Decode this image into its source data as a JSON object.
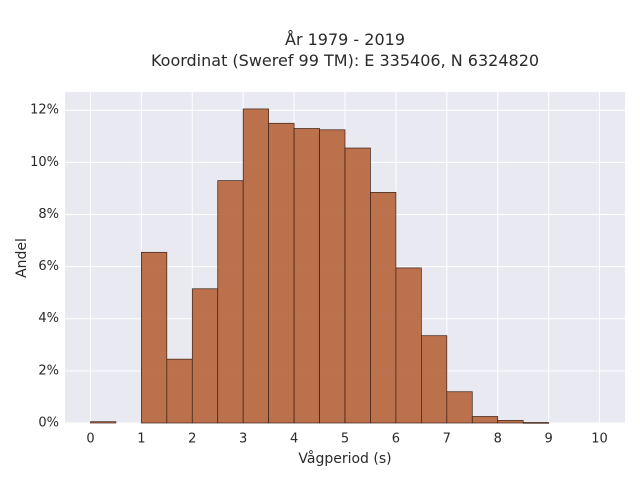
{
  "chart_data": {
    "type": "bar",
    "title_lines": [
      "År 1979 - 2019",
      "Koordinat (Sweref 99 TM): E 335406, N 6324820"
    ],
    "xlabel": "Vågperiod (s)",
    "ylabel": "Andel",
    "xlim": [
      -0.5,
      10.5
    ],
    "ylim": [
      0,
      12.7
    ],
    "bin_width": 0.5,
    "bins": [
      {
        "x": 0.0,
        "value": 0.05
      },
      {
        "x": 0.5,
        "value": 0
      },
      {
        "x": 1.0,
        "value": 6.55
      },
      {
        "x": 1.5,
        "value": 2.45
      },
      {
        "x": 2.0,
        "value": 5.15
      },
      {
        "x": 2.5,
        "value": 9.3
      },
      {
        "x": 3.0,
        "value": 12.05
      },
      {
        "x": 3.5,
        "value": 11.5
      },
      {
        "x": 4.0,
        "value": 11.3
      },
      {
        "x": 4.5,
        "value": 11.25
      },
      {
        "x": 5.0,
        "value": 10.55
      },
      {
        "x": 5.5,
        "value": 8.85
      },
      {
        "x": 6.0,
        "value": 5.95
      },
      {
        "x": 6.5,
        "value": 3.35
      },
      {
        "x": 7.0,
        "value": 1.2
      },
      {
        "x": 7.5,
        "value": 0.25
      },
      {
        "x": 8.0,
        "value": 0.1
      },
      {
        "x": 8.5,
        "value": 0.02
      },
      {
        "x": 9.0,
        "value": 0
      },
      {
        "x": 9.5,
        "value": 0
      }
    ],
    "x_ticks": [
      0,
      1,
      2,
      3,
      4,
      5,
      6,
      7,
      8,
      9,
      10
    ],
    "x_tick_labels": [
      "0",
      "1",
      "2",
      "3",
      "4",
      "5",
      "6",
      "7",
      "8",
      "9",
      "10"
    ],
    "y_ticks": [
      0,
      2,
      4,
      6,
      8,
      10,
      12
    ],
    "y_tick_labels": [
      "0%",
      "2%",
      "4%",
      "6%",
      "8%",
      "10%",
      "12%"
    ],
    "grid": true,
    "colors": {
      "bar_fill": "#b5643a",
      "bar_edge": "#3b2218",
      "plot_background": "#e9e9f1",
      "grid": "#ffffff"
    }
  }
}
